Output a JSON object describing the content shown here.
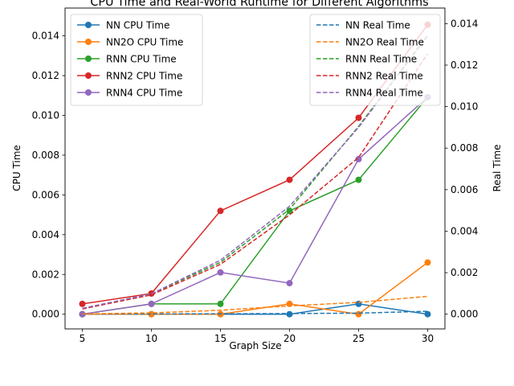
{
  "chart_data": {
    "type": "line",
    "title": "CPU Time and Real-World Runtime for Different Algorithms",
    "xlabel": "Graph Size",
    "ylabel_left": "CPU Time",
    "ylabel_right": "Real Time",
    "x": [
      5,
      10,
      15,
      20,
      25,
      30
    ],
    "xlim": [
      3.75,
      31.25
    ],
    "ylim_left": [
      -0.00074,
      0.0154
    ],
    "ylim_right": [
      -0.00071,
      0.01475
    ],
    "xticks": [
      "5",
      "10",
      "15",
      "20",
      "25",
      "30"
    ],
    "yticks_left": [
      "0.000",
      "0.002",
      "0.004",
      "0.006",
      "0.008",
      "0.010",
      "0.012",
      "0.014"
    ],
    "yticks_right": [
      "0.000",
      "0.002",
      "0.004",
      "0.006",
      "0.008",
      "0.010",
      "0.012",
      "0.014"
    ],
    "grid": false,
    "legend_left_position": "upper-left",
    "legend_right_position": "upper-right",
    "cpu_series": [
      {
        "name": "NN CPU Time",
        "color": "#1f77b4",
        "values": [
          0.0,
          0.0,
          0.0,
          0.0,
          0.00052,
          0.0
        ]
      },
      {
        "name": "NN2O CPU Time",
        "color": "#ff7f0e",
        "values": [
          0.0,
          0.0,
          0.0,
          0.00052,
          0.0,
          0.0026
        ]
      },
      {
        "name": "RNN CPU Time",
        "color": "#2ca02c",
        "values": [
          0.0,
          0.00052,
          0.00052,
          0.0052,
          0.00676,
          0.01092
        ]
      },
      {
        "name": "RNN2 CPU Time",
        "color": "#d62728",
        "values": [
          0.00052,
          0.00104,
          0.0052,
          0.00676,
          0.00988,
          0.01456
        ]
      },
      {
        "name": "RNN4 CPU Time",
        "color": "#9467bd",
        "values": [
          0.0,
          0.00052,
          0.0021,
          0.00156,
          0.0078,
          0.01092
        ]
      }
    ],
    "real_series": [
      {
        "name": "NN Real Time",
        "color": "#1f77b4",
        "values": [
          0.0,
          1e-05,
          2e-05,
          3e-05,
          5e-05,
          0.00014
        ]
      },
      {
        "name": "NN2O Real Time",
        "color": "#ff7f0e",
        "values": [
          1e-05,
          6e-05,
          0.00019,
          0.0004,
          0.00057,
          0.00086
        ]
      },
      {
        "name": "RNN Real Time",
        "color": "#2ca02c",
        "values": [
          0.00027,
          0.00098,
          0.0025,
          0.00505,
          0.00905,
          0.01345
        ]
      },
      {
        "name": "RNN2 Real Time",
        "color": "#d62728",
        "values": [
          0.00025,
          0.00093,
          0.0024,
          0.00478,
          0.00755,
          0.01255
        ]
      },
      {
        "name": "RNN4 Real Time",
        "color": "#9467bd",
        "values": [
          0.00028,
          0.00098,
          0.0026,
          0.0052,
          0.009,
          0.0134
        ]
      }
    ]
  }
}
